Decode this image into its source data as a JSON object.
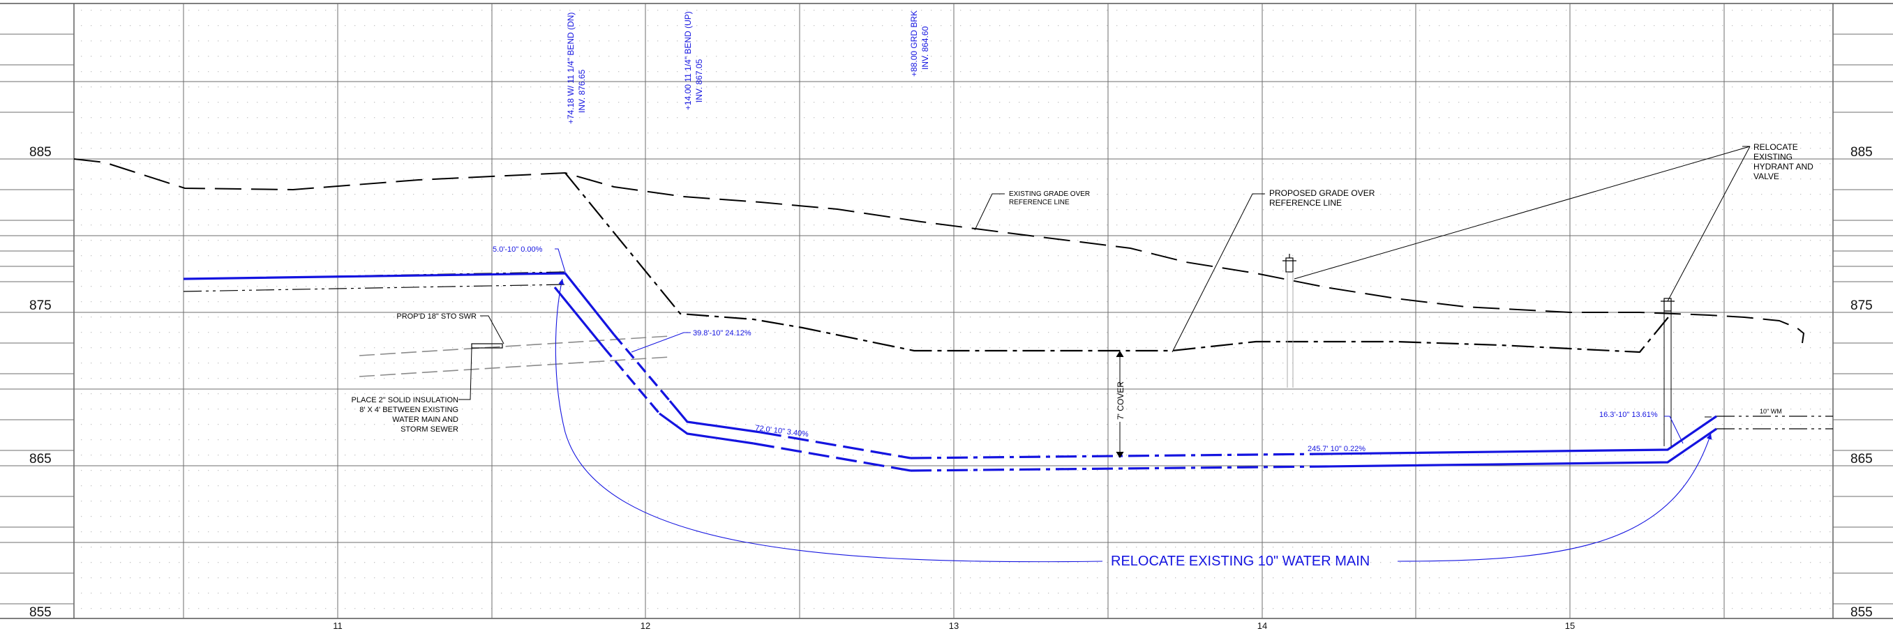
{
  "profile": {
    "elevations": {
      "left": [
        "885",
        "875",
        "865",
        "855"
      ],
      "right": [
        "885",
        "875",
        "865",
        "855"
      ]
    },
    "stations": [
      "11",
      "12",
      "13",
      "14",
      "15"
    ],
    "fitting_labels": [
      {
        "line1": "+74.18 W/ 11 1/4\" BEND (DN)",
        "line2": "INV. 876.65"
      },
      {
        "line1": "+14.00 11 1/4\" BEND (UP)",
        "line2": "INV. 867.05"
      },
      {
        "line1": "+88.00 GRD BRK",
        "line2": "INV. 864.60"
      }
    ],
    "notes": {
      "existing_grade": [
        "EXISTING GRADE OVER",
        "REFERENCE LINE"
      ],
      "proposed_grade": [
        "PROPOSED GRADE OVER",
        "REFERENCE LINE"
      ],
      "relocate_hydrant": [
        "RELOCATE",
        "EXISTING",
        "HYDRANT AND",
        "VALVE"
      ],
      "storm_sewer": "PROP'D 18\" STO SWR",
      "insulation": [
        "PLACE 2\" SOLID INSULATION",
        "8' X 4' BETWEEN EXISTING",
        "WATER MAIN AND",
        "STORM SEWER"
      ],
      "cover": "7' COVER",
      "existing_wm": "10\" WM"
    },
    "pipe_labels": {
      "seg1": "5.0'-10\" 0.00%",
      "seg2": "39.8'-10\" 24.12%",
      "seg3": "72.0'  10\"  3.40%",
      "seg4": "245.7'  10\"  0.22%",
      "seg5": "16.3'-10\" 13.61%"
    },
    "main_note": "RELOCATE EXISTING 10\" WATER MAIN",
    "colors": {
      "pipe": "#1414e0",
      "grade": "#000000",
      "grid": "#6e6e6e",
      "dots": "#c4c4c4",
      "storm": "#8a8a8a"
    }
  }
}
